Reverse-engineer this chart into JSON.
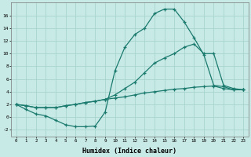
{
  "xlabel": "Humidex (Indice chaleur)",
  "background_color": "#c8eae6",
  "grid_color": "#a8d4ce",
  "line_color": "#1a7a6e",
  "xlim": [
    -0.5,
    23.5
  ],
  "ylim": [
    -3,
    18
  ],
  "xticks": [
    0,
    1,
    2,
    3,
    4,
    5,
    6,
    7,
    8,
    9,
    10,
    11,
    12,
    13,
    14,
    15,
    16,
    17,
    18,
    19,
    20,
    21,
    22,
    23
  ],
  "yticks": [
    -2,
    0,
    2,
    4,
    6,
    8,
    10,
    12,
    14,
    16
  ],
  "line1_x": [
    0,
    1,
    2,
    3,
    4,
    5,
    6,
    7,
    8,
    9,
    10,
    11,
    12,
    13,
    14,
    15,
    16,
    17,
    18,
    19,
    20,
    21,
    22,
    23
  ],
  "line1_y": [
    2.0,
    1.2,
    0.5,
    0.2,
    -0.5,
    -1.2,
    -1.5,
    -1.5,
    -1.4,
    0.8,
    7.3,
    11.0,
    13.0,
    14.0,
    16.3,
    17.0,
    17.0,
    15.0,
    12.5,
    9.8,
    5.0,
    4.8,
    4.3,
    4.3
  ],
  "line2_x": [
    0,
    1,
    2,
    3,
    4,
    5,
    6,
    7,
    8,
    9,
    10,
    11,
    12,
    13,
    14,
    15,
    16,
    17,
    18,
    19,
    20,
    21,
    22,
    23
  ],
  "line2_y": [
    2.0,
    1.8,
    1.5,
    1.5,
    1.5,
    1.8,
    2.0,
    2.3,
    2.5,
    2.8,
    3.5,
    4.5,
    5.5,
    7.0,
    8.5,
    9.3,
    10.0,
    11.0,
    11.5,
    10.0,
    10.0,
    5.0,
    4.5,
    4.3
  ],
  "line3_x": [
    0,
    1,
    2,
    3,
    4,
    5,
    6,
    7,
    8,
    9,
    10,
    11,
    12,
    13,
    14,
    15,
    16,
    17,
    18,
    19,
    20,
    21,
    22,
    23
  ],
  "line3_y": [
    2.0,
    1.8,
    1.5,
    1.5,
    1.5,
    1.8,
    2.0,
    2.3,
    2.5,
    2.8,
    3.0,
    3.2,
    3.5,
    3.8,
    4.0,
    4.2,
    4.4,
    4.5,
    4.7,
    4.8,
    4.9,
    4.5,
    4.3,
    4.3
  ]
}
